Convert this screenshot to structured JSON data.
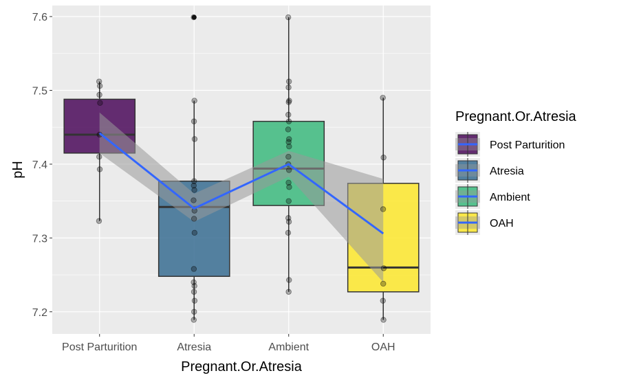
{
  "chart_data": {
    "type": "box",
    "xlabel": "Pregnant.Or.Atresia",
    "ylabel": "pH",
    "ylim": [
      7.17,
      7.615
    ],
    "yticks": [
      7.2,
      7.3,
      7.4,
      7.5,
      7.6
    ],
    "ytick_labels": [
      "7.2",
      "7.3",
      "7.4",
      "7.5",
      "7.6"
    ],
    "grid": true,
    "legend_position": "right",
    "legend_title": "Pregnant.Or.Atresia",
    "trend_color": "#3366ff",
    "ribbon_color": "#999999",
    "groups": [
      {
        "label": "Post Parturition",
        "color": "#440154",
        "q1": 7.415,
        "median": 7.44,
        "q3": 7.488,
        "whisker_low": 7.323,
        "whisker_high": 7.512,
        "outliers": [],
        "points": [
          7.512,
          7.506,
          7.494,
          7.483,
          7.44,
          7.41,
          7.393,
          7.323
        ],
        "fit": 7.442,
        "ribbon_low": 7.415,
        "ribbon_high": 7.47
      },
      {
        "label": "Atresia",
        "color": "#31688e",
        "q1": 7.248,
        "median": 7.342,
        "q3": 7.377,
        "whisker_low": 7.189,
        "whisker_high": 7.486,
        "outliers": [
          7.599
        ],
        "points": [
          7.599,
          7.486,
          7.458,
          7.434,
          7.377,
          7.371,
          7.365,
          7.351,
          7.337,
          7.326,
          7.307,
          7.258,
          7.24,
          7.235,
          7.227,
          7.215,
          7.2,
          7.189
        ],
        "fit": 7.34,
        "ribbon_low": 7.322,
        "ribbon_high": 7.36
      },
      {
        "label": "Ambient",
        "color": "#35b779",
        "q1": 7.344,
        "median": 7.394,
        "q3": 7.458,
        "whisker_low": 7.227,
        "whisker_high": 7.599,
        "outliers": [],
        "points": [
          7.599,
          7.512,
          7.504,
          7.486,
          7.484,
          7.467,
          7.458,
          7.447,
          7.434,
          7.43,
          7.424,
          7.41,
          7.4,
          7.392,
          7.375,
          7.369,
          7.35,
          7.327,
          7.322,
          7.307,
          7.243,
          7.227
        ],
        "fit": 7.4,
        "ribbon_low": 7.383,
        "ribbon_high": 7.418
      },
      {
        "label": "OAH",
        "color": "#fde725",
        "q1": 7.227,
        "median": 7.26,
        "q3": 7.374,
        "whisker_low": 7.189,
        "whisker_high": 7.49,
        "outliers": [],
        "points": [
          7.49,
          7.409,
          7.339,
          7.259,
          7.238,
          7.215,
          7.189
        ],
        "fit": 7.306,
        "ribbon_low": 7.24,
        "ribbon_high": 7.38
      }
    ]
  }
}
